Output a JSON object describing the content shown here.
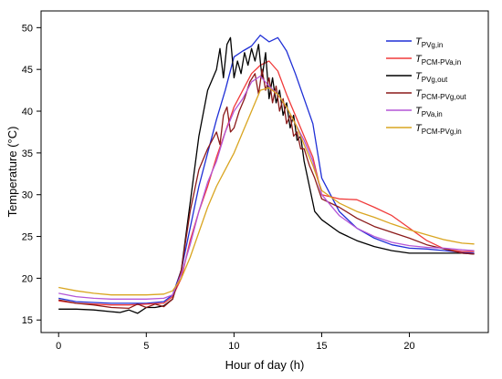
{
  "chart_data": {
    "type": "line",
    "xlabel": "Hour of day (h)",
    "ylabel": "Temperature (°C)",
    "xlim": [
      -1,
      24.5
    ],
    "ylim": [
      13.5,
      52
    ],
    "xticks": [
      0,
      5,
      10,
      15,
      20
    ],
    "yticks": [
      15,
      20,
      25,
      30,
      35,
      40,
      45,
      50
    ],
    "grid": false,
    "legend_position": "top-right",
    "series": [
      {
        "name": "T",
        "sub": "PVg,in",
        "color": "#1f2fd6",
        "x": [
          0,
          1,
          2,
          3,
          4,
          5,
          6,
          6.5,
          7,
          7.5,
          8,
          8.5,
          9,
          9.5,
          10,
          10.5,
          11,
          11.5,
          12,
          12.5,
          13,
          13.5,
          14,
          14.5,
          15,
          16,
          17,
          18,
          19,
          20,
          21,
          22,
          23,
          23.7
        ],
        "y": [
          17.6,
          17.2,
          17.1,
          17.0,
          17.0,
          17.0,
          17.2,
          18.0,
          21.0,
          26.0,
          31.0,
          35.0,
          39.0,
          42.5,
          46.5,
          47.2,
          47.8,
          49.1,
          48.3,
          48.8,
          47.2,
          44.5,
          41.5,
          38.5,
          32.0,
          28.0,
          26.0,
          24.8,
          24.0,
          23.6,
          23.5,
          23.3,
          23.1,
          23.0
        ]
      },
      {
        "name": "T",
        "sub": "PCM-PVa,in",
        "color": "#f03a3a",
        "x": [
          0,
          1,
          2,
          3,
          4,
          5,
          6,
          6.5,
          7,
          7.5,
          8,
          8.5,
          9,
          9.5,
          10,
          10.5,
          11,
          11.5,
          12,
          12.5,
          13,
          13.5,
          14,
          14.5,
          15,
          16,
          17,
          18,
          19,
          20,
          21,
          22,
          23,
          23.7
        ],
        "y": [
          17.3,
          17.0,
          16.9,
          16.8,
          16.8,
          16.9,
          17.0,
          17.8,
          20.0,
          24.5,
          28.0,
          31.0,
          34.5,
          37.5,
          40.5,
          42.5,
          44.5,
          45.5,
          46.0,
          44.8,
          42.0,
          39.5,
          37.0,
          34.5,
          30.0,
          29.5,
          29.4,
          28.5,
          27.5,
          26.0,
          24.5,
          23.5,
          23.2,
          23.2
        ]
      },
      {
        "name": "T",
        "sub": "PVg,out",
        "color": "#000000",
        "x": [
          0,
          1,
          2,
          3,
          3.5,
          4,
          4.5,
          5,
          5.5,
          6,
          6.5,
          7,
          7.5,
          8,
          8.5,
          9,
          9.2,
          9.4,
          9.6,
          9.8,
          10,
          10.2,
          10.4,
          10.6,
          10.8,
          11,
          11.2,
          11.4,
          11.6,
          11.8,
          12,
          12.2,
          12.4,
          12.6,
          12.8,
          13,
          13.2,
          13.4,
          13.6,
          13.8,
          14,
          14.3,
          14.6,
          15,
          16,
          17,
          18,
          19,
          20,
          21,
          22,
          23,
          23.7
        ],
        "y": [
          16.3,
          16.3,
          16.2,
          16.0,
          15.9,
          16.2,
          15.8,
          16.5,
          16.5,
          16.7,
          17.5,
          21.0,
          29.0,
          37.0,
          42.5,
          45.0,
          47.5,
          44.0,
          48.0,
          48.8,
          44.0,
          46.0,
          44.5,
          47.0,
          45.5,
          47.5,
          46.0,
          48.0,
          44.0,
          47.0,
          41.5,
          44.0,
          41.0,
          42.5,
          39.5,
          41.0,
          38.0,
          39.5,
          36.5,
          37.0,
          34.0,
          31.0,
          28.0,
          27.0,
          25.5,
          24.5,
          23.8,
          23.3,
          23.0,
          23.0,
          23.0,
          23.0,
          22.9
        ]
      },
      {
        "name": "T",
        "sub": "PCM-PVg,out",
        "color": "#8b1a1a",
        "x": [
          0,
          1,
          2,
          3,
          4,
          4.5,
          5,
          5.5,
          6,
          6.5,
          7,
          7.5,
          8,
          8.5,
          9,
          9.2,
          9.4,
          9.6,
          9.8,
          10,
          10.3,
          10.6,
          10.9,
          11.2,
          11.4,
          11.6,
          11.8,
          12,
          12.2,
          12.4,
          12.6,
          12.8,
          13,
          13.2,
          13.4,
          13.6,
          13.8,
          14,
          14.3,
          14.6,
          15,
          16,
          17,
          18,
          19,
          20,
          21,
          22,
          23,
          23.7
        ],
        "y": [
          17.4,
          17.0,
          16.8,
          16.5,
          16.4,
          16.9,
          16.5,
          16.9,
          16.6,
          17.5,
          21.0,
          28.0,
          33.0,
          35.5,
          37.5,
          36.0,
          39.5,
          40.5,
          37.5,
          38.0,
          40.0,
          41.5,
          43.5,
          44.5,
          42.0,
          45.0,
          42.5,
          44.0,
          41.0,
          43.0,
          40.0,
          41.5,
          38.5,
          39.5,
          37.0,
          37.5,
          35.5,
          35.5,
          33.5,
          32.0,
          29.5,
          28.5,
          27.2,
          26.2,
          25.5,
          24.8,
          24.0,
          23.5,
          23.0,
          22.9
        ]
      },
      {
        "name": "T",
        "sub": "PVa,in",
        "color": "#b455d6",
        "x": [
          0,
          1,
          2,
          3,
          4,
          5,
          6,
          6.5,
          7,
          7.5,
          8,
          8.5,
          9,
          9.5,
          10,
          10.5,
          11,
          11.5,
          12,
          12.5,
          13,
          13.5,
          14,
          14.5,
          15,
          16,
          17,
          18,
          19,
          20,
          21,
          22,
          23,
          23.7
        ],
        "y": [
          18.2,
          17.8,
          17.6,
          17.5,
          17.5,
          17.5,
          17.6,
          18.0,
          20.5,
          24.0,
          28.0,
          31.5,
          34.0,
          37.5,
          40.0,
          41.5,
          43.5,
          44.2,
          43.0,
          42.0,
          40.5,
          38.5,
          36.5,
          34.0,
          30.0,
          27.5,
          26.0,
          25.0,
          24.3,
          23.9,
          23.7,
          23.6,
          23.4,
          23.3
        ]
      },
      {
        "name": "T",
        "sub": "PCM-PVg,in",
        "color": "#d9a520",
        "x": [
          0,
          1,
          2,
          3,
          4,
          5,
          6,
          6.5,
          7,
          7.5,
          8,
          8.5,
          9,
          9.5,
          10,
          10.5,
          11,
          11.5,
          12,
          12.5,
          13,
          13.5,
          14,
          14.5,
          15,
          16,
          17,
          18,
          19,
          20,
          21,
          22,
          23,
          23.7
        ],
        "y": [
          18.9,
          18.5,
          18.2,
          18.0,
          18.0,
          18.0,
          18.1,
          18.5,
          20.0,
          22.5,
          25.5,
          28.5,
          31.0,
          33.0,
          35.0,
          37.5,
          40.0,
          42.5,
          42.8,
          42.0,
          40.5,
          38.5,
          36.0,
          33.5,
          30.5,
          29.0,
          28.0,
          27.3,
          26.5,
          25.8,
          25.2,
          24.6,
          24.2,
          24.1
        ]
      }
    ]
  }
}
